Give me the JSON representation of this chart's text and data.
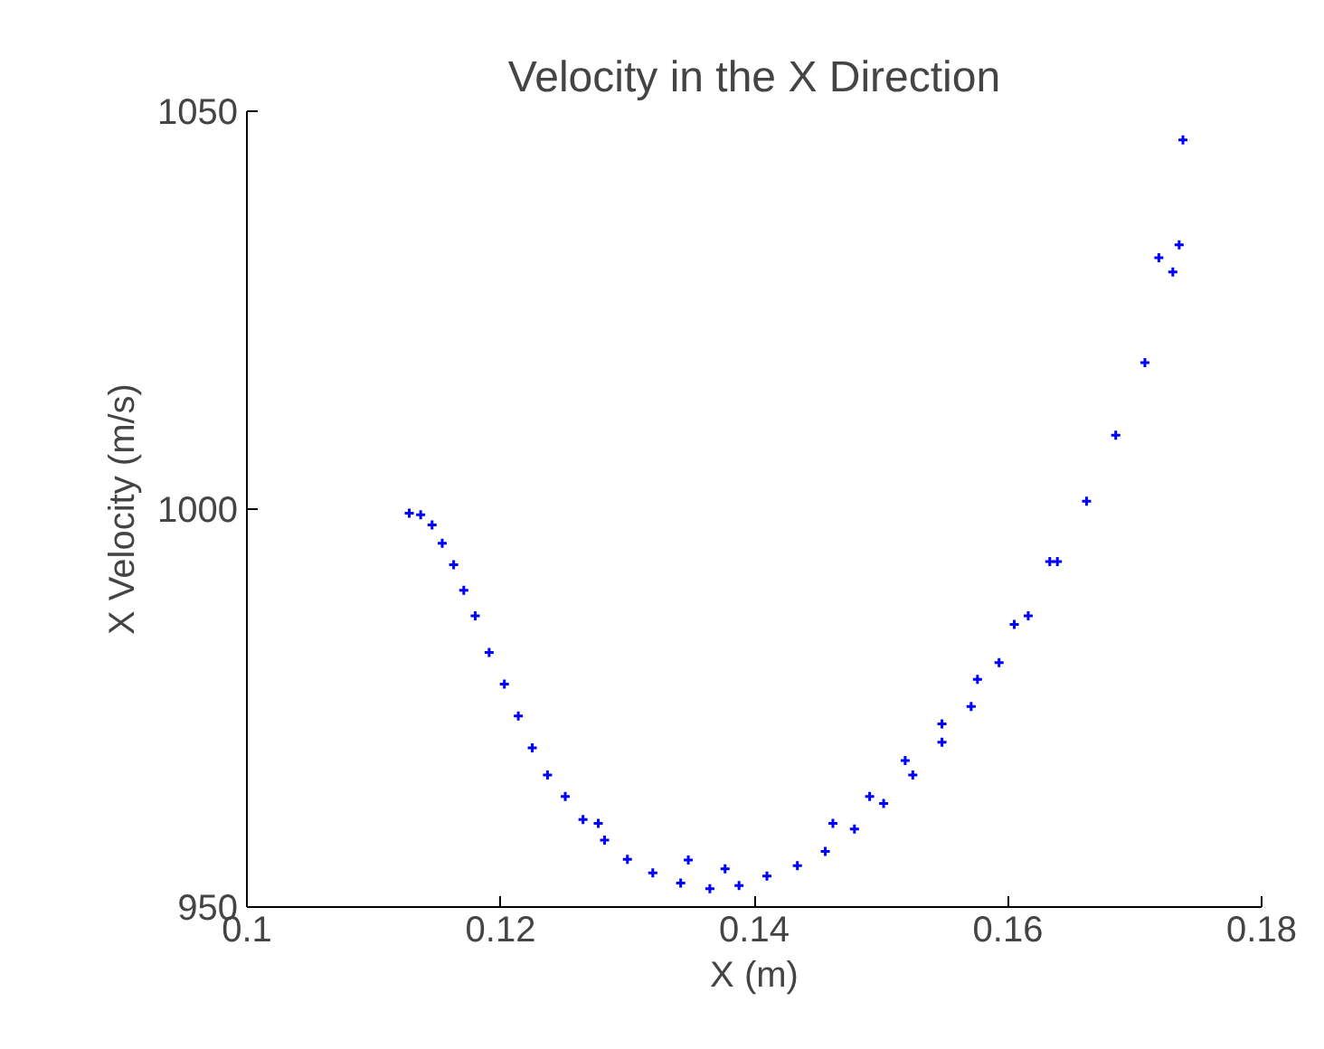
{
  "chart_data": {
    "type": "scatter",
    "title": "Velocity in the X Direction",
    "xlabel": "X (m)",
    "ylabel": "X Velocity (m/s)",
    "xlim": [
      0.1,
      0.18
    ],
    "xticks": [
      0.1,
      0.12,
      0.14,
      0.16,
      0.18
    ],
    "ylim": [
      950,
      1050
    ],
    "yticks": [
      950,
      1000,
      1050
    ],
    "grid": false,
    "marker": "cross",
    "series": [
      {
        "color": "#0000ff",
        "x": [
          0.1128,
          0.1137,
          0.1146,
          0.1154,
          0.1163,
          0.1171,
          0.118,
          0.1191,
          0.1203,
          0.1214,
          0.1225,
          0.1237,
          0.1251,
          0.1265,
          0.1282,
          0.13,
          0.132,
          0.1342,
          0.1365,
          0.1388,
          0.141,
          0.1434,
          0.1456,
          0.1479,
          0.1502,
          0.1525,
          0.1548,
          0.1571,
          0.1593,
          0.1616,
          0.1639,
          0.1662,
          0.1685,
          0.1708,
          0.173,
          0.1738,
          0.1462,
          0.1491,
          0.1519,
          0.1548,
          0.1576,
          0.1605,
          0.1633,
          0.1735,
          0.1719,
          0.1277,
          0.1348,
          0.1377
        ],
        "values": [
          999.5,
          999.3,
          998,
          995.7,
          993,
          989.8,
          986.6,
          982,
          978,
          974,
          970,
          966.6,
          963.9,
          961,
          958.4,
          956,
          954.3,
          953,
          952.3,
          952.7,
          953.9,
          955.2,
          957,
          959.8,
          963,
          966.6,
          970.7,
          975.2,
          980.7,
          986.6,
          993.4,
          1001,
          1009.3,
          1018.4,
          1029.8,
          1046.4,
          960.5,
          963.9,
          968.4,
          973,
          978.6,
          985.5,
          993.4,
          1033.2,
          1031.6,
          960.5,
          955.9,
          954.8
        ]
      }
    ]
  }
}
